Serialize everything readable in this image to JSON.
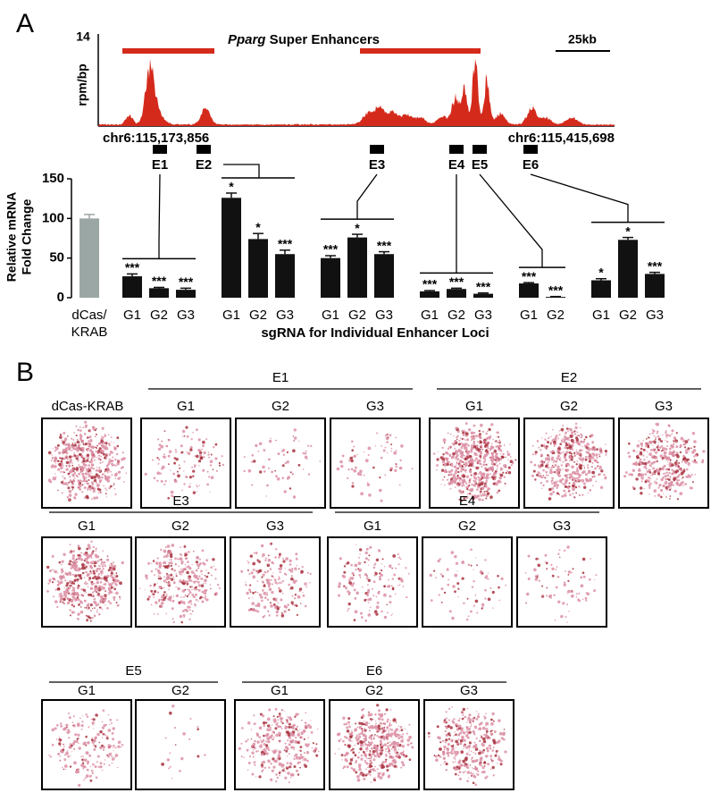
{
  "panel_a": {
    "label": "A",
    "track": {
      "ymax_label": "14",
      "ylabel": "rpm/bp",
      "title_gene": "Pparg",
      "title_rest": "Super Enhancers",
      "scale_label": "25kb",
      "start": "chr6:115,173,856",
      "end": "chr6:115,415,698"
    }
  },
  "chart_data": {
    "type": "bar",
    "ylabel": [
      "Relative  mRNA",
      "Fold Change"
    ],
    "xlabel": "sgRNA for Individual Enhancer Loci",
    "ylim": [
      0,
      150
    ],
    "yticks": [
      0,
      50,
      100,
      150
    ],
    "color": "#111111",
    "control": {
      "category": [
        "dCas/",
        "KRAB"
      ],
      "value": 100,
      "error": 5,
      "color": "#9ba7a5"
    },
    "groups": [
      {
        "name": "E1",
        "categories": [
          "G1",
          "G2",
          "G3"
        ],
        "values": [
          27,
          12,
          10
        ],
        "errors": [
          3,
          1,
          2
        ],
        "significance": [
          "***",
          "***",
          "***"
        ]
      },
      {
        "name": "E2",
        "categories": [
          "G1",
          "G2",
          "G3"
        ],
        "values": [
          126,
          74,
          55
        ],
        "errors": [
          6,
          7,
          5
        ],
        "significance": [
          "*",
          "*",
          "***"
        ]
      },
      {
        "name": "E3",
        "categories": [
          "G1",
          "G2",
          "G3"
        ],
        "values": [
          50,
          76,
          55
        ],
        "errors": [
          3,
          4,
          3
        ],
        "significance": [
          "***",
          "*",
          "***"
        ]
      },
      {
        "name": "E4",
        "categories": [
          "G1",
          "G2",
          "G3"
        ],
        "values": [
          8,
          11,
          5
        ],
        "errors": [
          1,
          1,
          1
        ],
        "significance": [
          "***",
          "***",
          "***"
        ]
      },
      {
        "name": "E5",
        "categories": [
          "G1",
          "G2"
        ],
        "values": [
          18,
          1
        ],
        "errors": [
          1,
          0.5
        ],
        "significance": [
          "***",
          "***"
        ]
      },
      {
        "name": "E6",
        "categories": [
          "G1",
          "G2",
          "G3"
        ],
        "values": [
          22,
          73,
          30
        ],
        "errors": [
          2,
          3,
          2
        ],
        "significance": [
          "*",
          "*",
          "***"
        ]
      }
    ]
  },
  "panel_b": {
    "label": "B",
    "control": "dCas-KRAB",
    "rows": [
      [
        {
          "name": "E1",
          "guides": [
            "G1",
            "G2",
            "G3"
          ]
        },
        {
          "name": "E2",
          "guides": [
            "G1",
            "G2",
            "G3"
          ]
        }
      ],
      [
        {
          "name": "E3",
          "guides": [
            "G1",
            "G2",
            "G3"
          ]
        },
        {
          "name": "E4",
          "guides": [
            "G1",
            "G2",
            "G3"
          ]
        }
      ],
      [
        {
          "name": "E5",
          "guides": [
            "G1",
            "G2"
          ]
        },
        {
          "name": "E6",
          "guides": [
            "G1",
            "G2",
            "G3"
          ]
        }
      ]
    ]
  }
}
